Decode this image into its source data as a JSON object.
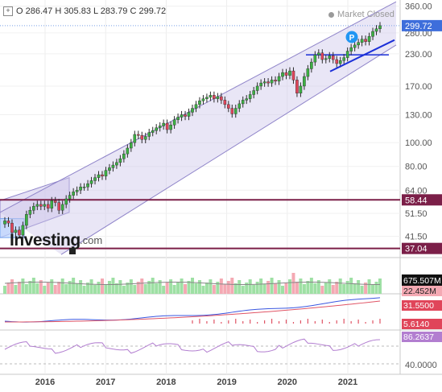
{
  "header": {
    "ohlc": "O 286.47  H 305.83  L 283.79  C 299.72",
    "grip_icon": "crosshair-icon",
    "status": "Market Closed"
  },
  "watermark": {
    "brand": "Investing",
    "suffix": ".com"
  },
  "colors": {
    "up": "#3cb043",
    "down": "#e0455a",
    "channel_fill": "#cfc8ec",
    "channel_line": "#8f84c9",
    "hline": "#7b1f48",
    "trend": "#1b2fd8",
    "blue_line": "#3a57e0",
    "red_line": "#e05566",
    "rsi": "#b27ed0",
    "pbadge": "#2196f3"
  },
  "chart_data": {
    "type": "candlestick",
    "title": "",
    "yscale": "log",
    "ylim": [
      34,
      370
    ],
    "x_labels": [
      "2016",
      "2017",
      "2018",
      "2019",
      "2020",
      "2021"
    ],
    "y_ticks": [
      "360.00",
      "280.00",
      "230.00",
      "170.00",
      "130.00",
      "100.00",
      "80.00",
      "64.00",
      "51.50",
      "41.50"
    ],
    "markers": {
      "last": "299.72",
      "level_high": "58.44",
      "level_low": "37.04"
    },
    "closes": [
      48,
      47,
      43,
      44,
      42,
      46,
      51,
      53,
      55,
      56,
      55,
      56,
      54,
      58,
      57,
      53,
      56,
      59,
      61,
      63,
      64,
      66,
      66,
      68,
      70,
      72,
      74,
      73,
      77,
      79,
      81,
      83,
      86,
      90,
      95,
      100,
      108,
      107,
      103,
      106,
      110,
      112,
      115,
      117,
      120,
      113,
      118,
      124,
      127,
      130,
      128,
      133,
      138,
      143,
      148,
      151,
      153,
      156,
      151,
      154,
      149,
      143,
      138,
      131,
      138,
      144,
      149,
      151,
      157,
      163,
      170,
      175,
      177,
      175,
      180,
      178,
      186,
      193,
      188,
      196,
      180,
      159,
      170,
      186,
      200,
      213,
      228,
      232,
      218,
      220,
      226,
      218,
      210,
      216,
      222,
      236,
      244,
      250,
      256,
      264,
      258,
      271,
      284,
      291,
      299.72
    ],
    "bottom_panels": [
      {
        "name": "volume",
        "values": [
          "675.507M",
          "22.452M"
        ]
      },
      {
        "name": "macd",
        "values": [
          "31.5500",
          "5.6140"
        ]
      },
      {
        "name": "rsi",
        "values": [
          "86.2637"
        ],
        "ticks": [
          "40.0000"
        ]
      }
    ]
  }
}
